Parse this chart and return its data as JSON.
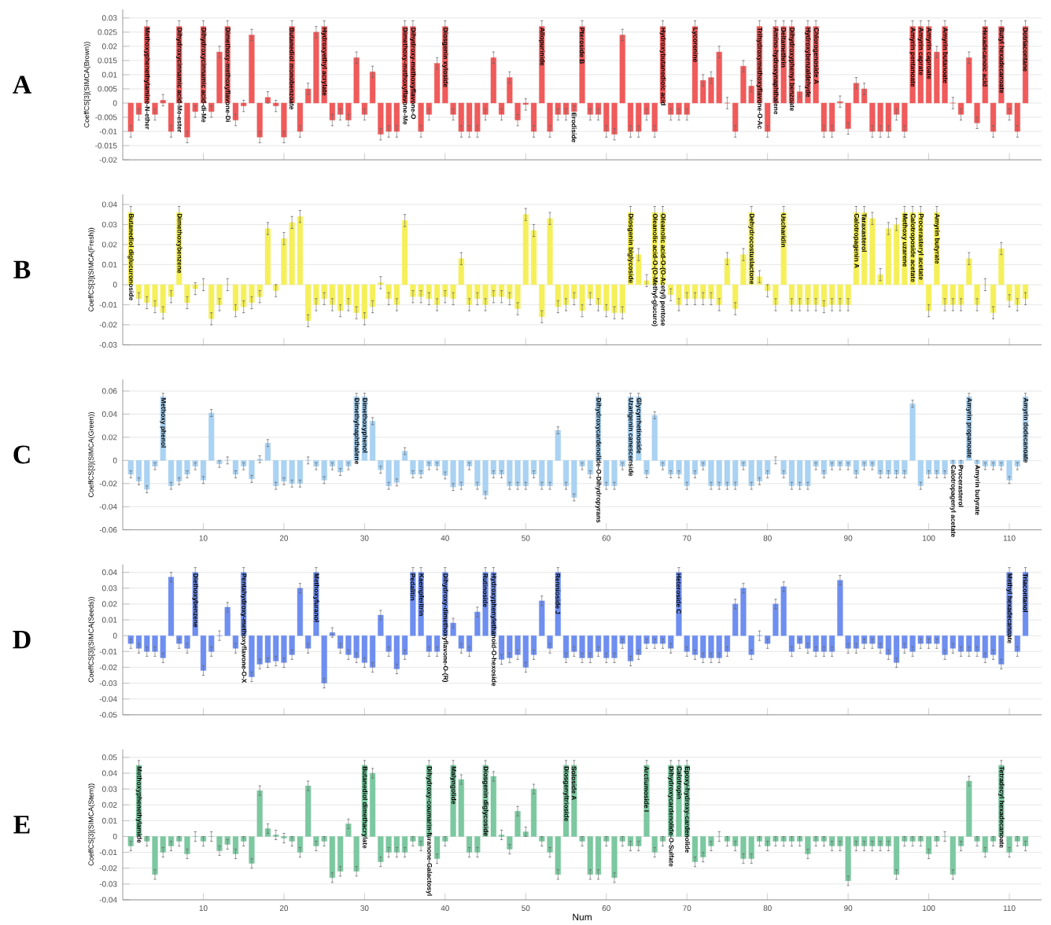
{
  "chart_data": [
    {
      "type": "bar",
      "title": "A",
      "ylabel": "CoeffCS[3](SIMCA(Brown))",
      "color": "#f05a5a",
      "grid": "y",
      "tick_labels": "y",
      "x": [
        1,
        2,
        3,
        4,
        5,
        6,
        7,
        8,
        9,
        10,
        11,
        12,
        13,
        14,
        15,
        16,
        17,
        18,
        19,
        20,
        21,
        22,
        23,
        24,
        25,
        26,
        27,
        28,
        29,
        30,
        31,
        32,
        33,
        34,
        35,
        36,
        37,
        38,
        39,
        40,
        41,
        42,
        43,
        44,
        45,
        46,
        47,
        48,
        49,
        50,
        51,
        52,
        53,
        54,
        55,
        56,
        57,
        58,
        59,
        60,
        61,
        62,
        63,
        64,
        65,
        66,
        67,
        68,
        69,
        70,
        71,
        72,
        73,
        74,
        75,
        76,
        77,
        78,
        79,
        80,
        81,
        82,
        83,
        84,
        85,
        86,
        87,
        88,
        89,
        90,
        91,
        92,
        93,
        94,
        95,
        96,
        97,
        98,
        99,
        100,
        101,
        102,
        103,
        104,
        105,
        106,
        107,
        108,
        109,
        110,
        111,
        112
      ],
      "values": [
        -0.01,
        -0.004,
        0.027,
        -0.004,
        0.001,
        -0.01,
        0.027,
        -0.012,
        -0.003,
        0.027,
        -0.003,
        0.018,
        0.027,
        -0.006,
        -0.001,
        0.024,
        -0.012,
        0.002,
        -0.001,
        -0.012,
        0.027,
        -0.01,
        0.005,
        0.025,
        0.027,
        -0.006,
        -0.004,
        -0.006,
        0.016,
        -0.004,
        0.011,
        -0.011,
        -0.01,
        -0.01,
        0.027,
        0.027,
        -0.01,
        -0.004,
        0.014,
        0.027,
        -0.004,
        -0.01,
        -0.01,
        -0.01,
        -0.004,
        0.016,
        -0.004,
        0.009,
        -0.006,
        -0.0005,
        -0.01,
        0.027,
        -0.01,
        -0.004,
        -0.004,
        -0.003,
        0.027,
        -0.004,
        -0.004,
        -0.01,
        -0.011,
        0.024,
        -0.01,
        -0.01,
        -0.004,
        -0.01,
        0.027,
        -0.004,
        -0.004,
        -0.004,
        0.027,
        0.008,
        0.009,
        0.018,
        0,
        -0.01,
        0.013,
        0.006,
        0.027,
        -0.01,
        0.027,
        0.027,
        0.027,
        0.004,
        0.027,
        0.027,
        -0.01,
        -0.01,
        0.0005,
        -0.009,
        0.007,
        0.005,
        -0.01,
        -0.01,
        -0.01,
        -0.004,
        -0.01,
        0.027,
        0.027,
        0.027,
        0.018,
        0.027,
        0,
        -0.004,
        0.016,
        -0.007,
        0.027,
        -0.01,
        0.027,
        -0.004,
        -0.01,
        0.027
      ],
      "errors": [
        0.002,
        0.002,
        0.002,
        0.002,
        0.002,
        0.002,
        0.002,
        0.002,
        0.002,
        0.002,
        0.002,
        0.002,
        0.002,
        0.002,
        0.002,
        0.002,
        0.002,
        0.002,
        0.002,
        0.002,
        0.002,
        0.002,
        0.002,
        0.002,
        0.002,
        0.002,
        0.002,
        0.002,
        0.002,
        0.002,
        0.002,
        0.002,
        0.002,
        0.002,
        0.002,
        0.002,
        0.002,
        0.002,
        0.002,
        0.002,
        0.002,
        0.002,
        0.002,
        0.002,
        0.002,
        0.002,
        0.002,
        0.002,
        0.002,
        0.002,
        0.002,
        0.002,
        0.002,
        0.002,
        0.002,
        0.002,
        0.002,
        0.002,
        0.002,
        0.002,
        0.002,
        0.002,
        0.002,
        0.002,
        0.002,
        0.002,
        0.002,
        0.002,
        0.002,
        0.002,
        0.002,
        0.002,
        0.002,
        0.002,
        0.002,
        0.002,
        0.002,
        0.002,
        0.002,
        0.002,
        0.002,
        0.002,
        0.002,
        0.002,
        0.002,
        0.002,
        0.002,
        0.002,
        0.002,
        0.002,
        0.002,
        0.002,
        0.002,
        0.002,
        0.002,
        0.002,
        0.002,
        0.002,
        0.002,
        0.002,
        0.002,
        0.002,
        0.002,
        0.002,
        0.002,
        0.002,
        0.002,
        0.002,
        0.002,
        0.002,
        0.002,
        0.002
      ],
      "xlim": [
        0,
        114
      ],
      "xticks": [
        10,
        20,
        30,
        40,
        50,
        60,
        70,
        80,
        90,
        100,
        110
      ],
      "ylim": [
        -0.02,
        0.033
      ],
      "yticks": [
        -0.02,
        -0.015,
        -0.01,
        -0.005,
        0,
        0.005,
        0.01,
        0.015,
        0.02,
        0.025,
        0.03
      ],
      "annotations": [
        {
          "text": "Methoxyphenethylamine-N-ether",
          "x": 3,
          "y": 0.027
        },
        {
          "text": "Dihydroxycinnamic acid-Me-ester",
          "x": 7,
          "y": 0.027
        },
        {
          "text": "Dihydroxycinnamic acid-di-Me",
          "x": 10,
          "y": 0.027
        },
        {
          "text": "Dimethoxy-methoxyflavone-Di",
          "x": 13,
          "y": 0.027
        },
        {
          "text": "Butanediol monobenzoate",
          "x": 21,
          "y": 0.027
        },
        {
          "text": "Hydroxyethyl acrylate",
          "x": 25,
          "y": 0.027
        },
        {
          "text": "Dimethoxy-methoxyflavone-Me",
          "x": 35,
          "y": 0.027
        },
        {
          "text": "Dihydroxy-methoxyflavone-O",
          "x": 36,
          "y": 0.027
        },
        {
          "text": "Diosgenin xyloside",
          "x": 40,
          "y": 0.027
        },
        {
          "text": "Allopurinide",
          "x": 52,
          "y": 0.027
        },
        {
          "text": "Erodiside",
          "x": 56,
          "y": -0.003
        },
        {
          "text": "Pteroside B",
          "x": 57,
          "y": 0.027
        },
        {
          "text": "Hydroxybutanedioic acid",
          "x": 67,
          "y": 0.027
        },
        {
          "text": "Lycorenine",
          "x": 71,
          "y": 0.027
        },
        {
          "text": "Trihydroxymethoxyflavone-O-Ac",
          "x": 79,
          "y": 0.027
        },
        {
          "text": "Amino-hydroxynaphthalene",
          "x": 81,
          "y": 0.027
        },
        {
          "text": "Deltamethrin",
          "x": 82,
          "y": 0.027
        },
        {
          "text": "Dihydroxyphenyl benzoate",
          "x": 83,
          "y": 0.027
        },
        {
          "text": "Hydroxybenzaldehyde",
          "x": 85,
          "y": 0.027
        },
        {
          "text": "Chlorogenoside A",
          "x": 86,
          "y": 0.027
        },
        {
          "text": "Amyrin pentanoate",
          "x": 98,
          "y": 0.027
        },
        {
          "text": "Amyrin caprate",
          "x": 99,
          "y": 0.027
        },
        {
          "text": "Amyrin caproate",
          "x": 100,
          "y": 0.027
        },
        {
          "text": "Amyrin butanoate",
          "x": 102,
          "y": 0.027
        },
        {
          "text": "Hexadecanoic acid",
          "x": 107,
          "y": 0.027
        },
        {
          "text": "Butyl hexadecanoate",
          "x": 109,
          "y": 0.027
        },
        {
          "text": "Dotriacontane",
          "x": 112,
          "y": 0.027
        }
      ]
    },
    {
      "type": "bar",
      "title": "B",
      "ylabel": "CoeffCS[3](SIMCA(Fresh))",
      "color": "#f5f05a",
      "grid": "y",
      "tick_labels": "y",
      "x": [
        1,
        2,
        3,
        4,
        5,
        6,
        7,
        8,
        9,
        10,
        11,
        12,
        13,
        14,
        15,
        16,
        17,
        18,
        19,
        20,
        21,
        22,
        23,
        24,
        25,
        26,
        27,
        28,
        29,
        30,
        31,
        32,
        33,
        34,
        35,
        36,
        37,
        38,
        39,
        40,
        41,
        42,
        43,
        44,
        45,
        46,
        47,
        48,
        49,
        50,
        51,
        52,
        53,
        54,
        55,
        56,
        57,
        58,
        59,
        60,
        61,
        62,
        63,
        64,
        65,
        66,
        67,
        68,
        69,
        70,
        71,
        72,
        73,
        74,
        75,
        76,
        77,
        78,
        79,
        80,
        81,
        82,
        83,
        84,
        85,
        86,
        87,
        88,
        89,
        90,
        91,
        92,
        93,
        94,
        95,
        96,
        97,
        98,
        99,
        100,
        101,
        102,
        103,
        104,
        105,
        106,
        107,
        108,
        109,
        110,
        111,
        112
      ],
      "values": [
        0.036,
        -0.007,
        -0.009,
        -0.011,
        -0.014,
        -0.006,
        0.036,
        -0.009,
        -0.002,
        0,
        -0.017,
        -0.01,
        0,
        -0.013,
        -0.011,
        -0.009,
        -0.006,
        0.028,
        -0.003,
        0.023,
        0.031,
        0.034,
        -0.018,
        -0.01,
        -0.007,
        -0.01,
        -0.013,
        -0.01,
        -0.014,
        -0.017,
        -0.011,
        0.001,
        -0.007,
        -0.01,
        0.032,
        -0.006,
        -0.006,
        -0.007,
        -0.01,
        -0.006,
        -0.007,
        0.013,
        -0.01,
        -0.007,
        -0.01,
        -0.006,
        -0.006,
        -0.007,
        -0.012,
        0.035,
        0.027,
        -0.016,
        0.033,
        -0.011,
        -0.01,
        -0.007,
        -0.013,
        -0.007,
        -0.01,
        -0.013,
        -0.014,
        -0.014,
        0.036,
        0.015,
        0.002,
        0.036,
        0.036,
        -0.005,
        -0.01,
        -0.007,
        -0.007,
        -0.007,
        -0.007,
        -0.01,
        0.013,
        -0.012,
        0.015,
        0.036,
        0.004,
        -0.003,
        -0.01,
        0.036,
        -0.01,
        -0.01,
        -0.01,
        -0.01,
        -0.011,
        -0.01,
        -0.01,
        -0.01,
        0.036,
        0.036,
        0.033,
        0.005,
        0.028,
        0.03,
        0.036,
        0.036,
        0.036,
        -0.013,
        0.036,
        -0.01,
        -0.01,
        -0.01,
        0.013,
        -0.01,
        0,
        -0.014,
        0.018,
        -0.008,
        -0.01,
        -0.007
      ],
      "errors": [
        0.003,
        0.003,
        0.003,
        0.003,
        0.003,
        0.003,
        0.003,
        0.003,
        0.003,
        0.003,
        0.003,
        0.003,
        0.003,
        0.003,
        0.003,
        0.003,
        0.003,
        0.003,
        0.003,
        0.003,
        0.003,
        0.003,
        0.003,
        0.003,
        0.003,
        0.003,
        0.003,
        0.003,
        0.003,
        0.003,
        0.003,
        0.003,
        0.003,
        0.003,
        0.003,
        0.003,
        0.003,
        0.003,
        0.003,
        0.003,
        0.003,
        0.003,
        0.003,
        0.003,
        0.003,
        0.003,
        0.003,
        0.003,
        0.003,
        0.003,
        0.003,
        0.003,
        0.003,
        0.003,
        0.003,
        0.003,
        0.003,
        0.003,
        0.003,
        0.003,
        0.003,
        0.003,
        0.003,
        0.003,
        0.003,
        0.003,
        0.003,
        0.003,
        0.003,
        0.003,
        0.003,
        0.003,
        0.003,
        0.003,
        0.003,
        0.003,
        0.003,
        0.003,
        0.003,
        0.003,
        0.003,
        0.003,
        0.003,
        0.003,
        0.003,
        0.003,
        0.003,
        0.003,
        0.003,
        0.003,
        0.003,
        0.003,
        0.003,
        0.003,
        0.003,
        0.003,
        0.003,
        0.003,
        0.003,
        0.003,
        0.003,
        0.003,
        0.003,
        0.003,
        0.003,
        0.003,
        0.003,
        0.003,
        0.003,
        0.003,
        0.003,
        0.003
      ],
      "xlim": [
        0,
        114
      ],
      "xticks": [
        10,
        20,
        30,
        40,
        50,
        60,
        70,
        80,
        90,
        100,
        110
      ],
      "ylim": [
        -0.03,
        0.045
      ],
      "yticks": [
        -0.03,
        -0.02,
        -0.01,
        0,
        0.01,
        0.02,
        0.03,
        0.04
      ],
      "annotations": [
        {
          "text": "Butanediol diglucuronoside",
          "x": 1,
          "y": 0.036
        },
        {
          "text": "Dimethoxybenzene",
          "x": 7,
          "y": 0.036
        },
        {
          "text": "Diosgenin biglycoside",
          "x": 63,
          "y": 0.036
        },
        {
          "text": "Oleanolic acid-O-(O-Methyl-glucuro)",
          "x": 66,
          "y": 0.036
        },
        {
          "text": "Oleanolic acid-O-(O-Acetyl) pentose",
          "x": 67,
          "y": 0.036
        },
        {
          "text": "Dehydrocostuslactone",
          "x": 78,
          "y": 0.036
        },
        {
          "text": "Uscharidin",
          "x": 82,
          "y": 0.036
        },
        {
          "text": "Calotropagenin A",
          "x": 91,
          "y": 0.036
        },
        {
          "text": "Taraxasterol",
          "x": 92,
          "y": 0.036
        },
        {
          "text": "Methoxy uzarene",
          "x": 97,
          "y": 0.036
        },
        {
          "text": "Calotroposide acetate",
          "x": 98,
          "y": 0.036
        },
        {
          "text": "Procerasteryl acetate",
          "x": 99,
          "y": 0.036
        },
        {
          "text": "Amyrin butyrate",
          "x": 101,
          "y": 0.036
        }
      ]
    },
    {
      "type": "bar",
      "title": "C",
      "ylabel": "CoeffCS[3](SIMCA(Green))",
      "color": "#aad2f2",
      "grid": "y",
      "x": [
        1,
        2,
        3,
        4,
        5,
        6,
        7,
        8,
        9,
        10,
        11,
        12,
        13,
        14,
        15,
        16,
        17,
        18,
        19,
        20,
        21,
        22,
        23,
        24,
        25,
        26,
        27,
        28,
        29,
        30,
        31,
        32,
        33,
        34,
        35,
        36,
        37,
        38,
        39,
        40,
        41,
        42,
        43,
        44,
        45,
        46,
        47,
        48,
        49,
        50,
        51,
        52,
        53,
        54,
        55,
        56,
        57,
        58,
        59,
        60,
        61,
        62,
        63,
        64,
        65,
        66,
        67,
        68,
        69,
        70,
        71,
        72,
        73,
        74,
        75,
        76,
        77,
        78,
        79,
        80,
        81,
        82,
        83,
        84,
        85,
        86,
        87,
        88,
        89,
        90,
        91,
        92,
        93,
        94,
        95,
        96,
        97,
        98,
        99,
        100,
        101,
        102,
        103,
        104,
        105,
        106,
        107,
        108,
        109,
        110,
        111,
        112
      ],
      "values": [
        -0.012,
        -0.018,
        -0.025,
        -0.005,
        0.055,
        -0.022,
        -0.018,
        -0.012,
        -0.005,
        -0.017,
        0.041,
        -0.003,
        0,
        -0.012,
        -0.005,
        -0.016,
        0.001,
        0.015,
        -0.022,
        -0.018,
        -0.02,
        -0.02,
        0,
        -0.005,
        -0.017,
        -0.005,
        -0.01,
        -0.005,
        0.055,
        0.055,
        0.034,
        -0.008,
        -0.022,
        -0.019,
        0.008,
        -0.012,
        -0.012,
        -0.005,
        -0.005,
        -0.013,
        -0.023,
        -0.022,
        -0.005,
        -0.022,
        -0.03,
        -0.012,
        -0.012,
        -0.022,
        -0.022,
        -0.022,
        -0.012,
        -0.022,
        -0.022,
        0.026,
        -0.022,
        -0.032,
        -0.005,
        -0.012,
        0.055,
        -0.022,
        -0.022,
        -0.005,
        0.055,
        0.055,
        -0.012,
        0.039,
        -0.005,
        -0.012,
        -0.012,
        -0.022,
        -0.012,
        -0.005,
        -0.022,
        -0.022,
        -0.022,
        -0.022,
        -0.005,
        -0.022,
        -0.018,
        -0.012,
        0,
        -0.012,
        -0.022,
        -0.022,
        -0.022,
        -0.005,
        -0.012,
        -0.005,
        -0.005,
        -0.005,
        -0.012,
        -0.005,
        -0.005,
        -0.012,
        -0.012,
        -0.012,
        -0.012,
        0.049,
        -0.022,
        -0.012,
        -0.012,
        -0.012,
        -0.003,
        -0.003,
        0.055,
        -0.003,
        -0.005,
        -0.005,
        -0.005,
        -0.017,
        -0.005,
        0.055
      ],
      "errors": [
        0.003,
        0.003,
        0.003,
        0.003,
        0.003,
        0.003,
        0.003,
        0.003,
        0.003,
        0.003,
        0.003,
        0.003,
        0.003,
        0.003,
        0.003,
        0.003,
        0.003,
        0.003,
        0.003,
        0.003,
        0.003,
        0.003,
        0.003,
        0.003,
        0.003,
        0.003,
        0.003,
        0.003,
        0.003,
        0.003,
        0.003,
        0.003,
        0.003,
        0.003,
        0.003,
        0.003,
        0.003,
        0.003,
        0.003,
        0.003,
        0.003,
        0.003,
        0.003,
        0.003,
        0.003,
        0.003,
        0.003,
        0.003,
        0.003,
        0.003,
        0.003,
        0.003,
        0.003,
        0.003,
        0.003,
        0.003,
        0.003,
        0.003,
        0.003,
        0.003,
        0.003,
        0.003,
        0.003,
        0.003,
        0.003,
        0.003,
        0.003,
        0.003,
        0.003,
        0.003,
        0.003,
        0.003,
        0.003,
        0.003,
        0.003,
        0.003,
        0.003,
        0.003,
        0.003,
        0.003,
        0.003,
        0.003,
        0.003,
        0.003,
        0.003,
        0.003,
        0.003,
        0.003,
        0.003,
        0.003,
        0.003,
        0.003,
        0.003,
        0.003,
        0.003,
        0.003,
        0.003,
        0.003,
        0.003,
        0.003,
        0.003,
        0.003,
        0.003,
        0.003,
        0.003,
        0.003,
        0.003,
        0.003,
        0.003,
        0.003,
        0.003,
        0.003
      ],
      "xlim": [
        0,
        114
      ],
      "xticks": [
        10,
        20,
        30,
        40,
        50,
        60,
        70,
        80,
        90,
        100,
        110
      ],
      "ylim": [
        -0.06,
        0.07
      ],
      "yticks": [
        -0.06,
        -0.04,
        -0.02,
        0,
        0.02,
        0.04,
        0.06
      ],
      "annotations": [
        {
          "text": "Methoxy phenol",
          "x": 5,
          "y": 0.055
        },
        {
          "text": "Dimethylnaphthalene",
          "x": 29,
          "y": 0.055
        },
        {
          "text": "Dimethoxyphenol",
          "x": 30,
          "y": 0.055
        },
        {
          "text": "Dihydroxycardenolide-O-Dihydropyrans",
          "x": 59,
          "y": 0.055
        },
        {
          "text": "Uzarigenin canescenside",
          "x": 63,
          "y": 0.055
        },
        {
          "text": "Glycyrrhetinoside",
          "x": 64,
          "y": 0.055
        },
        {
          "text": "Calotropagenyl acetate",
          "x": 103,
          "y": -0.003
        },
        {
          "text": "Procerasterol",
          "x": 104,
          "y": -0.003
        },
        {
          "text": "Amyrin propanoate",
          "x": 105,
          "y": 0.055
        },
        {
          "text": "Amyrin butyrate",
          "x": 106,
          "y": -0.003
        },
        {
          "text": "Amyrin dodecanoate",
          "x": 112,
          "y": 0.055
        }
      ]
    },
    {
      "type": "bar",
      "title": "D",
      "ylabel": "CoeffCS[3](SIMCA(Seeds))",
      "color": "#6e8ef0",
      "grid": "y",
      "tick_labels": "y",
      "x": [
        1,
        2,
        3,
        4,
        5,
        6,
        7,
        8,
        9,
        10,
        11,
        12,
        13,
        14,
        15,
        16,
        17,
        18,
        19,
        20,
        21,
        22,
        23,
        24,
        25,
        26,
        27,
        28,
        29,
        30,
        31,
        32,
        33,
        34,
        35,
        36,
        37,
        38,
        39,
        40,
        41,
        42,
        43,
        44,
        45,
        46,
        47,
        48,
        49,
        50,
        51,
        52,
        53,
        54,
        55,
        56,
        57,
        58,
        59,
        60,
        61,
        62,
        63,
        64,
        65,
        66,
        67,
        68,
        69,
        70,
        71,
        72,
        73,
        74,
        75,
        76,
        77,
        78,
        79,
        80,
        81,
        82,
        83,
        84,
        85,
        86,
        87,
        88,
        89,
        90,
        91,
        92,
        93,
        94,
        95,
        96,
        97,
        98,
        99,
        100,
        101,
        102,
        103,
        104,
        105,
        106,
        107,
        108,
        109,
        110,
        111,
        112
      ],
      "values": [
        -0.005,
        -0.008,
        -0.01,
        -0.01,
        -0.014,
        0.037,
        -0.005,
        -0.008,
        0.04,
        -0.022,
        -0.01,
        0,
        0.018,
        -0.008,
        0.04,
        -0.026,
        -0.018,
        -0.017,
        -0.016,
        -0.017,
        -0.012,
        0.03,
        -0.008,
        0.04,
        -0.03,
        0.002,
        -0.008,
        -0.012,
        -0.014,
        -0.017,
        -0.02,
        0.013,
        -0.01,
        -0.021,
        -0.012,
        0.04,
        0.04,
        -0.01,
        -0.01,
        0.04,
        0.008,
        -0.008,
        -0.01,
        0.015,
        0.04,
        0.04,
        -0.015,
        -0.014,
        -0.012,
        -0.02,
        -0.012,
        0.022,
        -0.008,
        0.04,
        -0.014,
        -0.01,
        -0.014,
        -0.014,
        -0.01,
        -0.014,
        -0.014,
        -0.005,
        -0.016,
        -0.012,
        -0.005,
        -0.005,
        -0.005,
        -0.008,
        0.04,
        -0.01,
        -0.012,
        -0.014,
        -0.014,
        -0.014,
        -0.01,
        0.02,
        0.03,
        -0.012,
        0,
        -0.005,
        0.02,
        0.031,
        -0.01,
        -0.005,
        -0.008,
        -0.01,
        -0.01,
        -0.01,
        0.035,
        -0.008,
        -0.008,
        -0.005,
        -0.005,
        -0.008,
        -0.012,
        -0.017,
        -0.008,
        -0.01,
        -0.005,
        -0.005,
        -0.005,
        -0.012,
        -0.008,
        -0.01,
        -0.01,
        -0.01,
        -0.014,
        -0.012,
        -0.018,
        0.04,
        -0.01,
        0.04
      ],
      "errors": [
        0.003,
        0.003,
        0.003,
        0.003,
        0.003,
        0.003,
        0.003,
        0.003,
        0.003,
        0.003,
        0.003,
        0.003,
        0.003,
        0.003,
        0.003,
        0.003,
        0.003,
        0.003,
        0.003,
        0.003,
        0.003,
        0.003,
        0.003,
        0.003,
        0.003,
        0.003,
        0.003,
        0.003,
        0.003,
        0.003,
        0.003,
        0.003,
        0.003,
        0.003,
        0.003,
        0.003,
        0.003,
        0.003,
        0.003,
        0.003,
        0.003,
        0.003,
        0.003,
        0.003,
        0.003,
        0.003,
        0.003,
        0.003,
        0.003,
        0.003,
        0.003,
        0.003,
        0.003,
        0.003,
        0.003,
        0.003,
        0.003,
        0.003,
        0.003,
        0.003,
        0.003,
        0.003,
        0.003,
        0.003,
        0.003,
        0.003,
        0.003,
        0.003,
        0.003,
        0.003,
        0.003,
        0.003,
        0.003,
        0.003,
        0.003,
        0.003,
        0.003,
        0.003,
        0.003,
        0.003,
        0.003,
        0.003,
        0.003,
        0.003,
        0.003,
        0.003,
        0.003,
        0.003,
        0.003,
        0.003,
        0.003,
        0.003,
        0.003,
        0.003,
        0.003,
        0.003,
        0.003,
        0.003,
        0.003,
        0.003,
        0.003,
        0.003,
        0.003,
        0.003,
        0.003,
        0.003,
        0.003,
        0.003,
        0.003,
        0.003,
        0.003,
        0.003
      ],
      "xlim": [
        0,
        114
      ],
      "xticks": [
        10,
        20,
        30,
        40,
        50,
        60,
        70,
        80,
        90,
        100,
        110
      ],
      "ylim": [
        -0.05,
        0.045
      ],
      "yticks": [
        -0.05,
        -0.04,
        -0.03,
        -0.02,
        -0.01,
        0,
        0.01,
        0.02,
        0.03,
        0.04
      ],
      "annotations": [
        {
          "text": "Diethoxybenzene",
          "x": 9,
          "y": 0.04
        },
        {
          "text": "Pentahydroxy-methoxyflavone-O-X",
          "x": 15,
          "y": 0.04
        },
        {
          "text": "Methoxyfuranol",
          "x": 24,
          "y": 0.04
        },
        {
          "text": "Pedalitin",
          "x": 36,
          "y": 0.04
        },
        {
          "text": "Kaempferitrin",
          "x": 37,
          "y": 0.04
        },
        {
          "text": "Dihydroxy-dimethoxyflavone-O-(R)",
          "x": 40,
          "y": 0.04
        },
        {
          "text": "Rutinoside",
          "x": 45,
          "y": 0.04
        },
        {
          "text": "Hydroxyphenylethanoid-O-hexoside",
          "x": 46,
          "y": 0.04
        },
        {
          "text": "Rennioside J",
          "x": 54,
          "y": 0.04
        },
        {
          "text": "Heteroside C",
          "x": 69,
          "y": 0.04
        },
        {
          "text": "Methyl hexadecanoate",
          "x": 110,
          "y": 0.04
        },
        {
          "text": "Triacontanol",
          "x": 112,
          "y": 0.04
        }
      ]
    },
    {
      "type": "bar",
      "title": "E",
      "xlabel": "Num",
      "ylabel": "CoeffCS[3](SIMCA(Stem))",
      "color": "#7cc8a0",
      "grid": "y",
      "x": [
        1,
        2,
        3,
        4,
        5,
        6,
        7,
        8,
        9,
        10,
        11,
        12,
        13,
        14,
        15,
        16,
        17,
        18,
        19,
        20,
        21,
        22,
        23,
        24,
        25,
        26,
        27,
        28,
        29,
        30,
        31,
        32,
        33,
        34,
        35,
        36,
        37,
        38,
        39,
        40,
        41,
        42,
        43,
        44,
        45,
        46,
        47,
        48,
        49,
        50,
        51,
        52,
        53,
        54,
        55,
        56,
        57,
        58,
        59,
        60,
        61,
        62,
        63,
        64,
        65,
        66,
        67,
        68,
        69,
        70,
        71,
        72,
        73,
        74,
        75,
        76,
        77,
        78,
        79,
        80,
        81,
        82,
        83,
        84,
        85,
        86,
        87,
        88,
        89,
        90,
        91,
        92,
        93,
        94,
        95,
        96,
        97,
        98,
        99,
        100,
        101,
        102,
        103,
        104,
        105,
        106,
        107,
        108,
        109,
        110,
        111,
        112
      ],
      "values": [
        -0.006,
        0.045,
        -0.003,
        -0.024,
        -0.01,
        -0.006,
        -0.003,
        -0.011,
        0,
        -0.003,
        0,
        -0.009,
        -0.005,
        -0.011,
        -0.003,
        -0.017,
        0.029,
        0.005,
        0.001,
        -0.001,
        -0.003,
        -0.01,
        0.032,
        -0.006,
        -0.003,
        -0.026,
        -0.022,
        0.008,
        -0.022,
        0.045,
        0.04,
        -0.016,
        -0.01,
        -0.01,
        -0.01,
        -0.003,
        -0.006,
        0.045,
        -0.014,
        -0.003,
        0.045,
        0.036,
        -0.01,
        -0.01,
        0.045,
        0.038,
        0.001,
        -0.008,
        0.016,
        0.003,
        0.03,
        -0.003,
        -0.01,
        -0.024,
        0.045,
        0.045,
        -0.003,
        -0.024,
        -0.024,
        -0.003,
        -0.026,
        -0.003,
        -0.006,
        -0.006,
        0.045,
        -0.01,
        -0.003,
        0.045,
        0.045,
        0.045,
        -0.016,
        -0.013,
        -0.006,
        0,
        -0.003,
        -0.006,
        -0.014,
        -0.014,
        -0.003,
        -0.006,
        -0.003,
        -0.003,
        -0.003,
        -0.003,
        -0.011,
        -0.003,
        -0.003,
        -0.006,
        -0.006,
        -0.028,
        -0.006,
        -0.006,
        -0.006,
        -0.006,
        -0.006,
        -0.024,
        -0.003,
        -0.003,
        -0.003,
        -0.011,
        -0.003,
        0,
        -0.024,
        -0.006,
        0.035,
        -0.003,
        -0.01,
        -0.003,
        0.045,
        -0.01,
        -0.003,
        -0.006
      ],
      "errors": [
        0.003,
        0.003,
        0.003,
        0.003,
        0.003,
        0.003,
        0.003,
        0.003,
        0.003,
        0.003,
        0.003,
        0.003,
        0.003,
        0.003,
        0.003,
        0.003,
        0.003,
        0.003,
        0.003,
        0.003,
        0.003,
        0.003,
        0.003,
        0.003,
        0.003,
        0.003,
        0.003,
        0.003,
        0.003,
        0.003,
        0.003,
        0.003,
        0.003,
        0.003,
        0.003,
        0.003,
        0.003,
        0.003,
        0.003,
        0.003,
        0.003,
        0.003,
        0.003,
        0.003,
        0.003,
        0.003,
        0.003,
        0.003,
        0.003,
        0.003,
        0.003,
        0.003,
        0.003,
        0.003,
        0.003,
        0.003,
        0.003,
        0.003,
        0.003,
        0.003,
        0.003,
        0.003,
        0.003,
        0.003,
        0.003,
        0.003,
        0.003,
        0.003,
        0.003,
        0.003,
        0.003,
        0.003,
        0.003,
        0.003,
        0.003,
        0.003,
        0.003,
        0.003,
        0.003,
        0.003,
        0.003,
        0.003,
        0.003,
        0.003,
        0.003,
        0.003,
        0.003,
        0.003,
        0.003,
        0.003,
        0.003,
        0.003,
        0.003,
        0.003,
        0.003,
        0.003,
        0.003,
        0.003,
        0.003,
        0.003,
        0.003,
        0.003,
        0.003,
        0.003,
        0.003,
        0.003,
        0.003,
        0.003,
        0.003,
        0.003,
        0.003,
        0.003
      ],
      "xlim": [
        0,
        114
      ],
      "xticks": [
        10,
        20,
        30,
        40,
        50,
        60,
        70,
        80,
        90,
        100,
        110
      ],
      "ylim": [
        -0.04,
        0.055
      ],
      "yticks": [
        -0.04,
        -0.03,
        -0.02,
        -0.01,
        0,
        0.01,
        0.02,
        0.03,
        0.04,
        0.05
      ],
      "annotations": [
        {
          "text": "Methoxyphenethylamide",
          "x": 2,
          "y": 0.045
        },
        {
          "text": "Butanediol dimethacrylate",
          "x": 30,
          "y": 0.045
        },
        {
          "text": "Dihydroxy-coumarin-furanone-Galactosyl",
          "x": 38,
          "y": 0.045
        },
        {
          "text": "Malyngolide",
          "x": 41,
          "y": 0.045
        },
        {
          "text": "Diosgenin diglycoside",
          "x": 45,
          "y": 0.045
        },
        {
          "text": "Diosgenyltrioside",
          "x": 55,
          "y": 0.045
        },
        {
          "text": "Soloside A",
          "x": 56,
          "y": 0.045
        },
        {
          "text": "Arctiumoside I",
          "x": 65,
          "y": 0.045
        },
        {
          "text": "Dihydroxycardenolide-O-Sulfate",
          "x": 68,
          "y": 0.045
        },
        {
          "text": "Calotropin",
          "x": 69,
          "y": 0.045
        },
        {
          "text": "Epoxy-hydroxy-cardenolide",
          "x": 70,
          "y": 0.045
        },
        {
          "text": "Tetradecyl hexadecanoate",
          "x": 109,
          "y": 0.045
        }
      ]
    }
  ]
}
